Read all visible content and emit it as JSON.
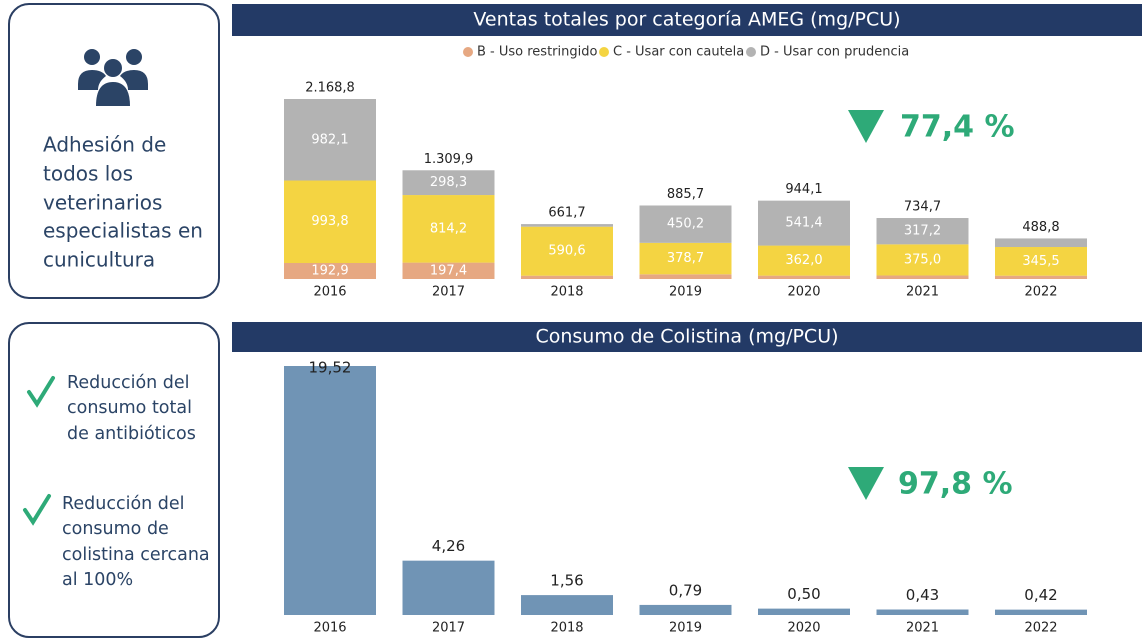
{
  "panels": [
    {
      "lines": [
        "Adhesión de",
        "todos los",
        "veterinarios",
        "especialistas en",
        "cunicultura"
      ]
    },
    {
      "items": [
        {
          "lines": [
            "Reducción del",
            "consumo total",
            "de antibióticos"
          ]
        },
        {
          "lines": [
            "Reducción del",
            "consumo de",
            "colistina cercana",
            "al 100%"
          ]
        }
      ]
    }
  ],
  "chart_data": [
    {
      "type": "stacked_bar",
      "title": "Ventas totales por categoría AMEG (mg/PCU)",
      "annotation": "77,4 %",
      "categories": [
        "2016",
        "2017",
        "2018",
        "2019",
        "2020",
        "2021",
        "2022"
      ],
      "series": [
        {
          "name": "B - Uso restringido",
          "color": "#e6a882",
          "values": [
            192.9,
            197.4,
            40,
            56.8,
            40.7,
            42.5,
            40
          ],
          "value_labels": [
            "192,9",
            "197,4",
            null,
            null,
            null,
            null,
            null
          ]
        },
        {
          "name": "C - Usar con cautela",
          "color": "#f4d442",
          "values": [
            993.8,
            814.2,
            590.6,
            378.7,
            362.0,
            375.0,
            345.5
          ],
          "value_labels": [
            "993,8",
            "814,2",
            "590,6",
            "378,7",
            "362,0",
            "375,0",
            "345,5"
          ]
        },
        {
          "name": "D - Usar con prudencia",
          "color": "#b3b3b3",
          "values": [
            982.1,
            298.3,
            31.1,
            450.2,
            541.4,
            317.2,
            103.3
          ],
          "value_labels": [
            "982,1",
            "298,3",
            null,
            "450,2",
            "541,4",
            "317,2",
            null
          ]
        }
      ],
      "totals": [
        2168.8,
        1309.9,
        661.7,
        885.7,
        944.1,
        734.7,
        488.8
      ],
      "total_labels": [
        "2.168,8",
        "1.309,9",
        "661,7",
        "885,7",
        "944,1",
        "734,7",
        "488,8"
      ]
    },
    {
      "type": "bar",
      "title": "Consumo de Colistina (mg/PCU)",
      "annotation": "97,8 %",
      "color": "#7094b5",
      "categories": [
        "2016",
        "2017",
        "2018",
        "2019",
        "2020",
        "2021",
        "2022"
      ],
      "values": [
        19.52,
        4.26,
        1.56,
        0.79,
        0.5,
        0.43,
        0.42
      ],
      "value_labels": [
        "19,52",
        "4,26",
        "1,56",
        "0,79",
        "0,50",
        "0,43",
        "0,42"
      ]
    }
  ]
}
